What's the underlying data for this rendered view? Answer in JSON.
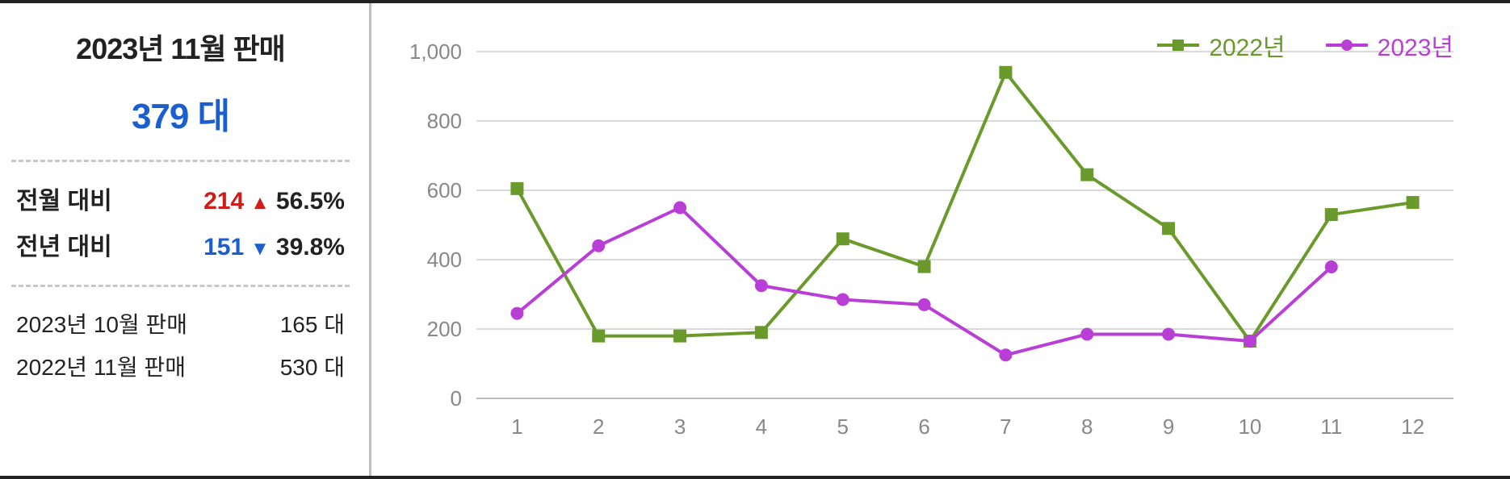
{
  "panel": {
    "title": "2023년 11월 판매",
    "big_value": "379 대",
    "mom": {
      "label": "전월 대비",
      "delta": "214",
      "arrow": "▲",
      "pct": "56.5%",
      "direction": "up"
    },
    "yoy": {
      "label": "전년 대비",
      "delta": "151",
      "arrow": "▼",
      "pct": "39.8%",
      "direction": "down"
    },
    "prev_month": {
      "label": "2023년 10월 판매",
      "value": "165 대"
    },
    "prev_year": {
      "label": "2022년 11월 판매",
      "value": "530 대"
    }
  },
  "chart": {
    "type": "line",
    "x_labels": [
      "1",
      "2",
      "3",
      "4",
      "5",
      "6",
      "7",
      "8",
      "9",
      "10",
      "11",
      "12"
    ],
    "y_ticks": [
      0,
      200,
      400,
      600,
      800,
      1000
    ],
    "y_tick_labels": [
      "0",
      "200",
      "400",
      "600",
      "800",
      "1,000"
    ],
    "ylim": [
      0,
      1000
    ],
    "grid_color": "#d9d9d9",
    "axis_text_color": "#888888",
    "background_color": "#ffffff",
    "line_width": 4,
    "marker_size": 8,
    "series": [
      {
        "name": "2022년",
        "color": "#6a9a2b",
        "marker": "square",
        "values": [
          605,
          180,
          180,
          190,
          460,
          380,
          940,
          645,
          490,
          165,
          530,
          565
        ]
      },
      {
        "name": "2023년",
        "color": "#b93ed6",
        "marker": "circle",
        "values": [
          245,
          440,
          550,
          325,
          285,
          270,
          125,
          185,
          185,
          165,
          379,
          null
        ]
      }
    ],
    "legend": {
      "items": [
        {
          "label": "2022년",
          "color": "#6a9a2b"
        },
        {
          "label": "2023년",
          "color": "#b93ed6"
        }
      ]
    }
  }
}
